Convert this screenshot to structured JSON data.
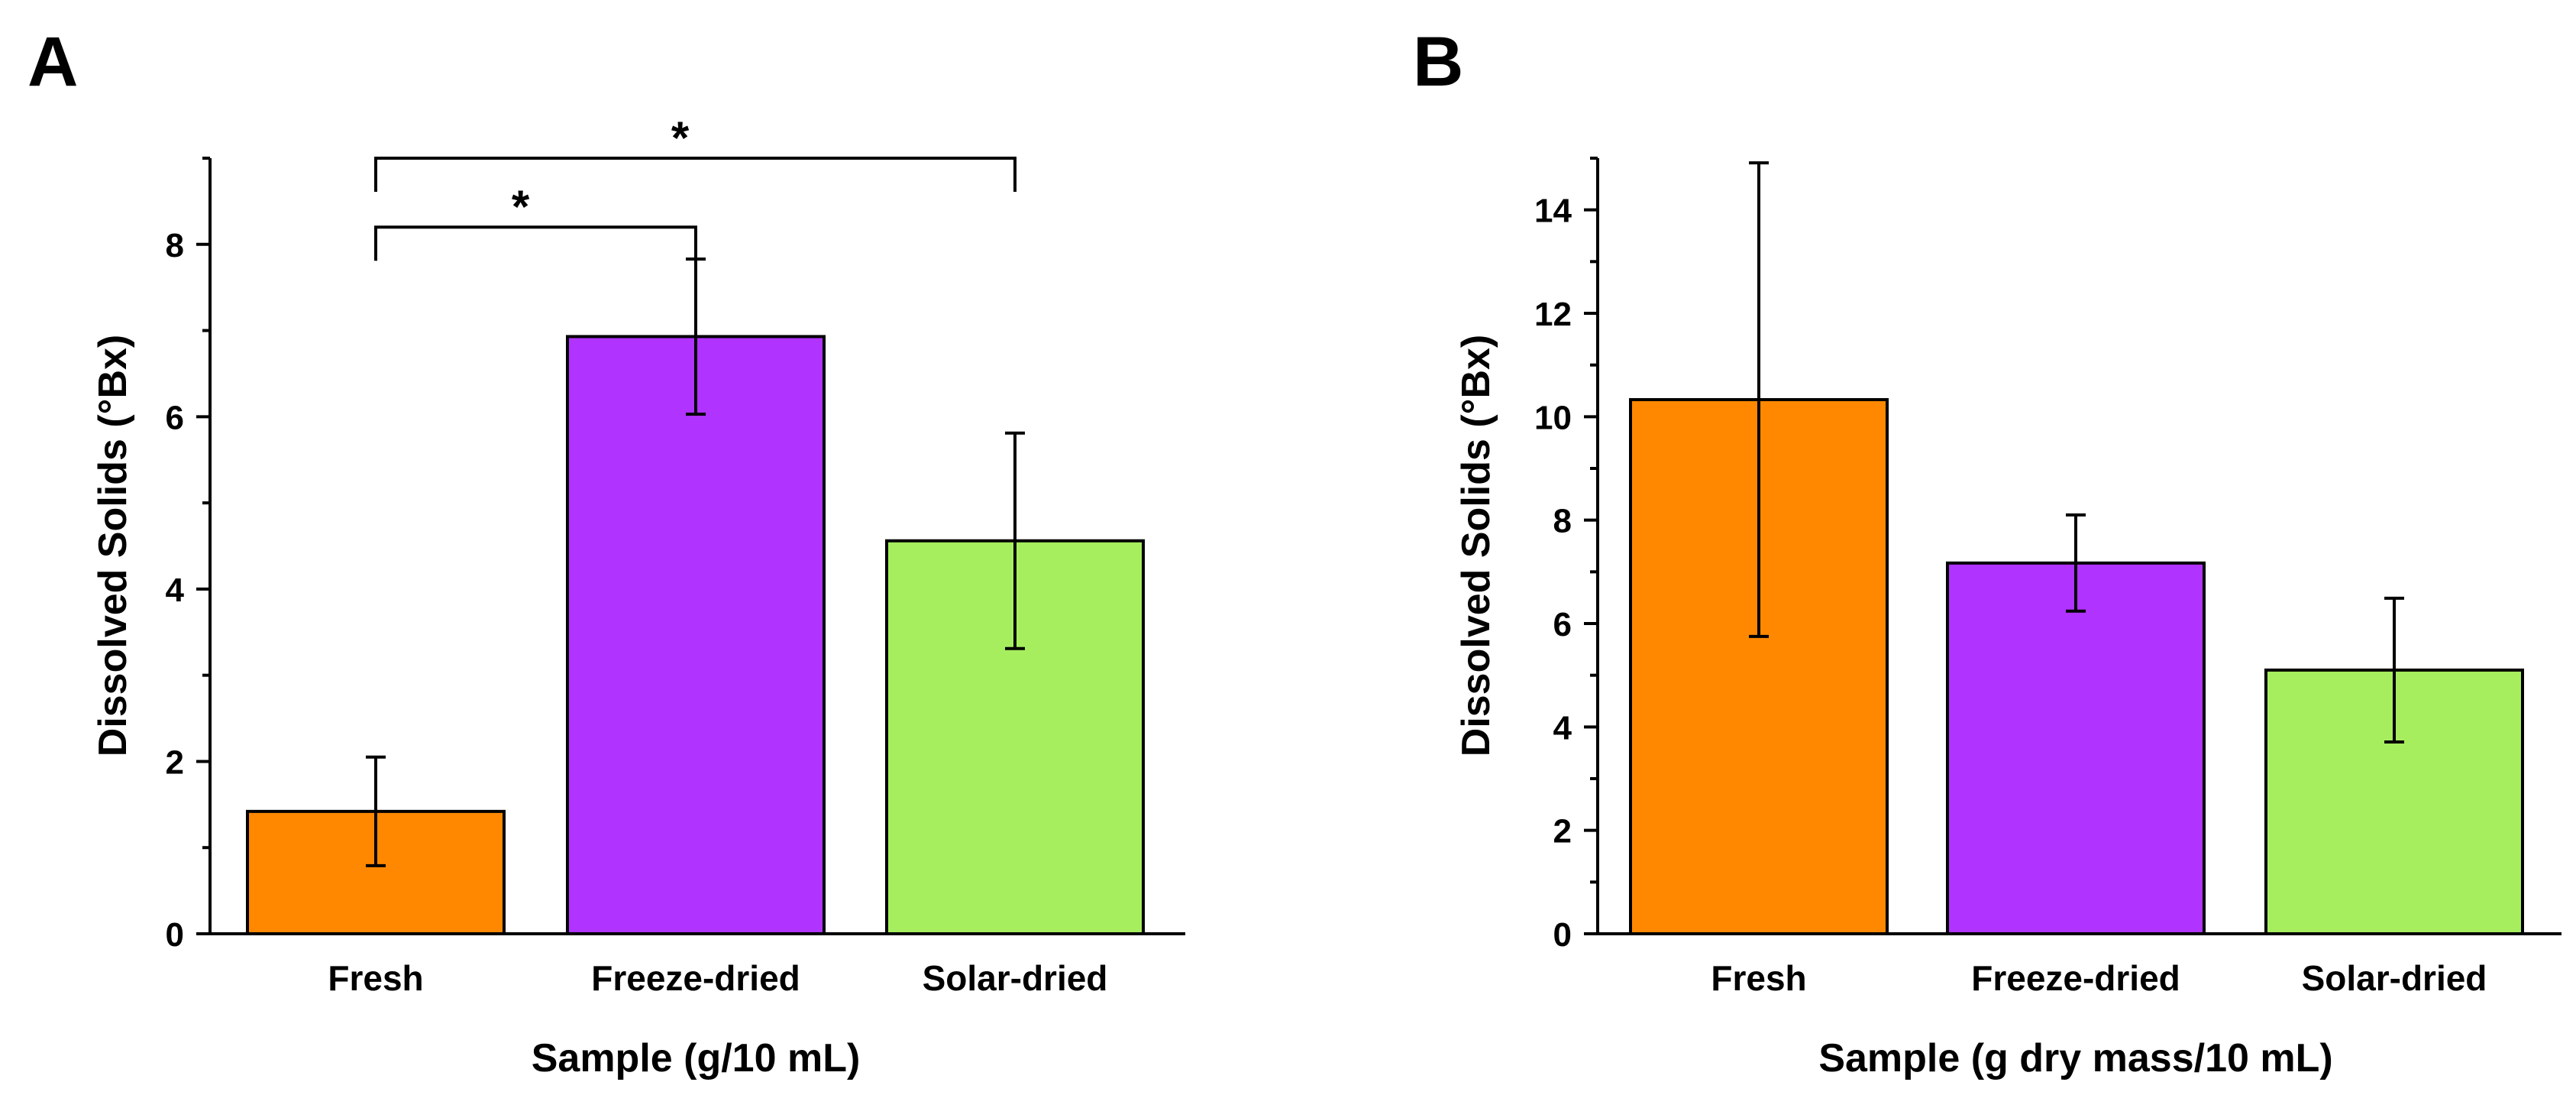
{
  "chart_data": [
    {
      "panel": "A",
      "type": "bar",
      "categories": [
        "Fresh",
        "Freeze-dried",
        "Solar-dried"
      ],
      "values": [
        1.42,
        6.93,
        4.56
      ],
      "errors": [
        0.63,
        0.9,
        1.25
      ],
      "colors": [
        "#FF8800",
        "#B133FF",
        "#A6EE5E"
      ],
      "xlabel": "Sample (g/10 mL)",
      "ylabel": "Dissolved Solids (°Bx)",
      "ylim": [
        0,
        9
      ],
      "yticks": [
        0,
        2,
        4,
        6,
        8
      ],
      "yticks_minor": [
        1,
        3,
        5,
        7,
        9
      ],
      "significance": [
        {
          "from": 0,
          "to": 1,
          "level": 8.2,
          "label": "*"
        },
        {
          "from": 0,
          "to": 2,
          "level": 9.0,
          "label": "*"
        }
      ]
    },
    {
      "panel": "B",
      "type": "bar",
      "categories": [
        "Fresh",
        "Freeze-dried",
        "Solar-dried"
      ],
      "values": [
        10.33,
        7.17,
        5.1
      ],
      "errors": [
        4.58,
        0.93,
        1.39
      ],
      "colors": [
        "#FF8800",
        "#B133FF",
        "#A6EE5E"
      ],
      "xlabel": "Sample (g dry mass/10 mL)",
      "ylabel": "Dissolved Solids (°Bx)",
      "ylim": [
        0,
        15
      ],
      "yticks": [
        0,
        2,
        4,
        6,
        8,
        10,
        12,
        14
      ],
      "yticks_minor": [
        1,
        3,
        5,
        7,
        9,
        11,
        13,
        15
      ],
      "significance": []
    }
  ]
}
